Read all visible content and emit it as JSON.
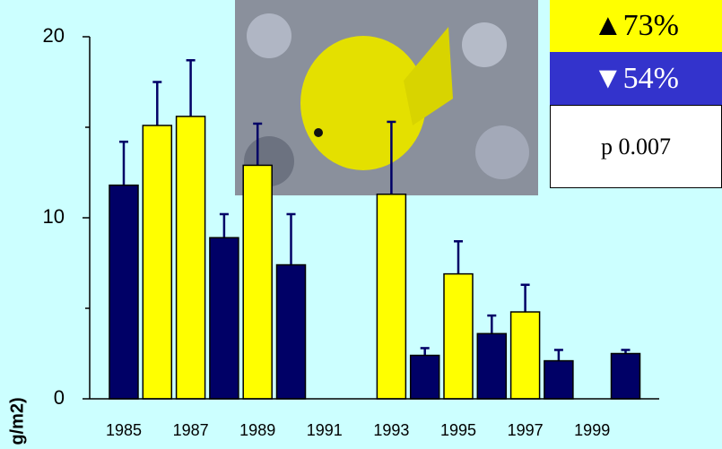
{
  "chart_data": {
    "type": "bar",
    "y_label": "g/m2)",
    "categories": [
      "1985",
      null,
      "1987",
      null,
      "1989",
      null,
      "1991",
      null,
      "1993",
      null,
      "1995",
      null,
      "1997",
      null,
      "1999",
      null
    ],
    "series": [
      {
        "values": [
          11.8,
          15.1,
          15.6,
          8.9,
          12.9,
          7.4,
          null,
          null,
          11.3,
          2.4,
          6.9,
          3.6,
          4.8,
          2.1,
          null,
          2.5
        ],
        "errors": [
          2.4,
          2.4,
          3.1,
          1.3,
          2.3,
          2.8,
          null,
          null,
          4.0,
          0.4,
          1.8,
          1.0,
          1.5,
          0.6,
          null,
          0.2
        ],
        "colors": [
          "#000066",
          "#ffff00",
          "#ffff00",
          "#000066",
          "#ffff00",
          "#000066",
          null,
          null,
          "#ffff00",
          "#000066",
          "#ffff00",
          "#000066",
          "#ffff00",
          "#000066",
          null,
          "#000066"
        ]
      }
    ],
    "ylim": [
      0,
      20
    ],
    "yticks": [
      0,
      10,
      20
    ],
    "yminorticks": [
      5,
      15
    ],
    "annotations": [
      "▲73%",
      "▼54%",
      "p  0.007"
    ]
  }
}
